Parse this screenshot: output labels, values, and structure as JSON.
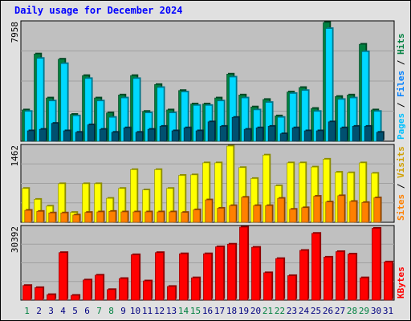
{
  "chart_data": {
    "type": "bar",
    "title": "Daily usage for December 2024",
    "days": [
      "1",
      "2",
      "3",
      "4",
      "5",
      "6",
      "7",
      "8",
      "9",
      "10",
      "11",
      "12",
      "13",
      "14",
      "15",
      "16",
      "17",
      "18",
      "19",
      "20",
      "21",
      "22",
      "23",
      "24",
      "25",
      "26",
      "27",
      "28",
      "29",
      "30",
      "31"
    ],
    "weekend_days": [
      "1",
      "7",
      "8",
      "14",
      "15",
      "21",
      "22",
      "28",
      "29"
    ],
    "colors": {
      "hits": "#008040",
      "files": "#00c0ff",
      "pages": "#00a0b0",
      "visits": "#ffff00",
      "sites": "#ff8000",
      "kbf": "#ff0000",
      "weekend_label": "#008040",
      "weekday_label": "#000080"
    },
    "panels": [
      {
        "id": "top",
        "max_label": "7958",
        "ymax": 7958,
        "legend": [
          {
            "text": "Hits",
            "color": "#008040"
          },
          {
            "text": " / ",
            "color": "#000000"
          },
          {
            "text": "Files",
            "color": "#0080ff"
          },
          {
            "text": " / ",
            "color": "#000000"
          },
          {
            "text": "Pages",
            "color": "#00c0ff"
          }
        ],
        "series": [
          {
            "name": "Hits",
            "color": "#008040",
            "values": [
              2100,
              5850,
              2900,
              5500,
              1800,
              4400,
              2900,
              1900,
              3100,
              4400,
              2000,
              3800,
              2100,
              3400,
              2500,
              2500,
              2900,
              4500,
              3100,
              2300,
              2800,
              1700,
              3300,
              3600,
              2200,
              7958,
              3000,
              3100,
              6500,
              2100,
              null
            ]
          },
          {
            "name": "Files",
            "color": "#00d8ff",
            "values": [
              2000,
              5550,
              2700,
              5200,
              1700,
              4200,
              2700,
              1600,
              2900,
              4200,
              1900,
              3600,
              1900,
              3300,
              2400,
              2400,
              2700,
              4300,
              2900,
              2100,
              2600,
              1600,
              3200,
              3400,
              2000,
              7550,
              2800,
              2900,
              6000,
              2000,
              null
            ]
          },
          {
            "name": "Pages",
            "color": "#005070",
            "values": [
              700,
              800,
              1200,
              700,
              600,
              1100,
              800,
              600,
              900,
              600,
              800,
              1000,
              700,
              900,
              700,
              1300,
              1000,
              1600,
              800,
              900,
              1000,
              500,
              900,
              700,
              700,
              1300,
              900,
              1000,
              1000,
              600,
              null
            ]
          }
        ]
      },
      {
        "id": "mid",
        "max_label": "1462",
        "ymax": 1462,
        "legend": [
          {
            "text": "Visits",
            "color": "#d0a000"
          },
          {
            "text": " / ",
            "color": "#000000"
          },
          {
            "text": "Sites",
            "color": "#ff8000"
          }
        ],
        "series": [
          {
            "name": "Visits",
            "color": "#ffff00",
            "values": [
              650,
              440,
              310,
              740,
              190,
              740,
              740,
              460,
              650,
              1010,
              620,
              1010,
              650,
              900,
              910,
              1140,
              1140,
              1462,
              1050,
              840,
              1290,
              700,
              1140,
              1140,
              1060,
              1210,
              960,
              950,
              1140,
              940,
              null
            ]
          },
          {
            "name": "Sites",
            "color": "#ff8000",
            "values": [
              230,
              210,
              180,
              180,
              140,
              190,
              200,
              210,
              200,
              200,
              200,
              200,
              200,
              190,
              240,
              430,
              270,
              320,
              480,
              320,
              320,
              460,
              250,
              280,
              500,
              390,
              510,
              400,
              380,
              470,
              null
            ]
          }
        ]
      },
      {
        "id": "bot",
        "max_label": "30392",
        "ymax": 30392,
        "legend": [
          {
            "text": "KBytes",
            "color": "#ff0000"
          }
        ],
        "series": [
          {
            "name": "KBytes",
            "color": "#ff0000",
            "values": [
              6100,
              5200,
              2300,
              19800,
              2000,
              8400,
              10400,
              4400,
              9000,
              18900,
              8000,
              19800,
              5700,
              19300,
              9300,
              19300,
              22200,
              23300,
              30392,
              22000,
              11400,
              17300,
              10200,
              20700,
              27800,
              17900,
              20200,
              19200,
              9300,
              29900,
              15900
            ]
          }
        ]
      }
    ]
  }
}
